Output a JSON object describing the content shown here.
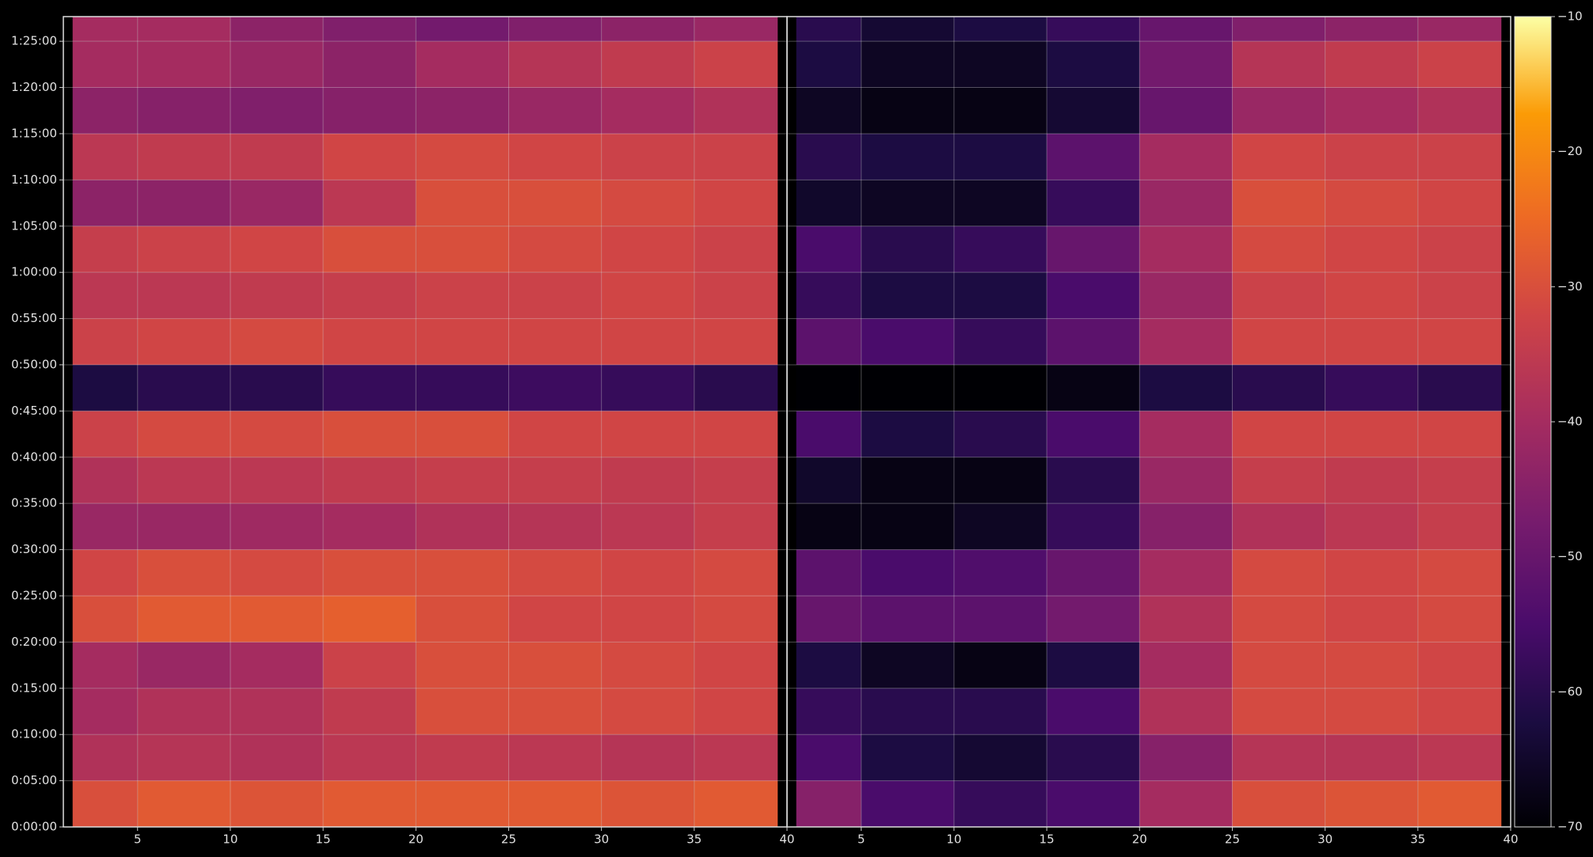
{
  "chart_data": [
    {
      "type": "heatmap",
      "colormap": "inferno",
      "grid": true,
      "xlim": [
        1,
        40
      ],
      "xticks": [
        5,
        10,
        15,
        20,
        25,
        30,
        35,
        40
      ],
      "ylim": [
        0,
        5260
      ],
      "yticks": [
        {
          "value": 0,
          "label": "0:00:00"
        },
        {
          "value": 300,
          "label": "0:05:00"
        },
        {
          "value": 600,
          "label": "0:10:00"
        },
        {
          "value": 900,
          "label": "0:15:00"
        },
        {
          "value": 1200,
          "label": "0:20:00"
        },
        {
          "value": 1500,
          "label": "0:25:00"
        },
        {
          "value": 1800,
          "label": "0:30:00"
        },
        {
          "value": 2100,
          "label": "0:35:00"
        },
        {
          "value": 2400,
          "label": "0:40:00"
        },
        {
          "value": 2700,
          "label": "0:45:00"
        },
        {
          "value": 3000,
          "label": "0:50:00"
        },
        {
          "value": 3300,
          "label": "0:55:00"
        },
        {
          "value": 3600,
          "label": "1:00:00"
        },
        {
          "value": 3900,
          "label": "1:05:00"
        },
        {
          "value": 4200,
          "label": "1:10:00"
        },
        {
          "value": 4500,
          "label": "1:15:00"
        },
        {
          "value": 4800,
          "label": "1:20:00"
        },
        {
          "value": 5100,
          "label": "1:25:00"
        }
      ],
      "xbins": [
        1.5,
        5,
        10,
        15,
        20,
        25,
        30,
        35,
        39.5
      ],
      "ybins": [
        0,
        300,
        600,
        900,
        1200,
        1500,
        1800,
        2100,
        2400,
        2700,
        3000,
        3300,
        3600,
        3900,
        4200,
        4500,
        4800,
        5100,
        5260
      ],
      "values": [
        [
          -30,
          -28,
          -29,
          -28,
          -28,
          -28,
          -29,
          -28
        ],
        [
          -38,
          -37,
          -38,
          -36,
          -35,
          -36,
          -37,
          -36
        ],
        [
          -40,
          -38,
          -38,
          -35,
          -30,
          -30,
          -31,
          -32
        ],
        [
          -40,
          -42,
          -40,
          -33,
          -30,
          -30,
          -31,
          -32
        ],
        [
          -30,
          -28,
          -28,
          -27,
          -30,
          -32,
          -32,
          -31
        ],
        [
          -32,
          -30,
          -31,
          -30,
          -30,
          -31,
          -32,
          -31
        ],
        [
          -42,
          -42,
          -41,
          -40,
          -38,
          -37,
          -36,
          -34
        ],
        [
          -38,
          -36,
          -36,
          -35,
          -34,
          -34,
          -35,
          -34
        ],
        [
          -33,
          -31,
          -31,
          -30,
          -30,
          -32,
          -32,
          -32
        ],
        [
          -62,
          -60,
          -60,
          -58,
          -58,
          -57,
          -58,
          -60
        ],
        [
          -33,
          -32,
          -31,
          -32,
          -32,
          -32,
          -32,
          -32
        ],
        [
          -36,
          -36,
          -35,
          -34,
          -33,
          -33,
          -32,
          -33
        ],
        [
          -34,
          -33,
          -32,
          -30,
          -30,
          -31,
          -32,
          -33
        ],
        [
          -44,
          -44,
          -42,
          -36,
          -30,
          -30,
          -31,
          -32
        ],
        [
          -36,
          -35,
          -35,
          -32,
          -31,
          -32,
          -33,
          -33
        ],
        [
          -44,
          -45,
          -46,
          -45,
          -44,
          -42,
          -40,
          -38
        ],
        [
          -40,
          -40,
          -42,
          -44,
          -40,
          -37,
          -35,
          -33
        ],
        [
          -40,
          -40,
          -44,
          -46,
          -48,
          -46,
          -44,
          -42
        ]
      ]
    },
    {
      "type": "heatmap",
      "colormap": "inferno",
      "grid": true,
      "xlim": [
        1,
        40
      ],
      "xticks": [
        5,
        10,
        15,
        20,
        25,
        30,
        35,
        40
      ],
      "ylim": [
        0,
        5260
      ],
      "xbins": [
        1.5,
        5,
        10,
        15,
        20,
        25,
        30,
        35,
        39.5
      ],
      "ybins": [
        0,
        300,
        600,
        900,
        1200,
        1500,
        1800,
        2100,
        2400,
        2700,
        3000,
        3300,
        3600,
        3900,
        4200,
        4500,
        4800,
        5100,
        5260
      ],
      "values": [
        [
          -45,
          -55,
          -58,
          -55,
          -40,
          -30,
          -29,
          -28
        ],
        [
          -55,
          -62,
          -64,
          -60,
          -45,
          -37,
          -37,
          -36
        ],
        [
          -58,
          -60,
          -60,
          -55,
          -38,
          -31,
          -31,
          -32
        ],
        [
          -62,
          -66,
          -68,
          -62,
          -40,
          -31,
          -31,
          -32
        ],
        [
          -50,
          -52,
          -52,
          -48,
          -38,
          -31,
          -32,
          -31
        ],
        [
          -52,
          -55,
          -54,
          -50,
          -40,
          -31,
          -32,
          -31
        ],
        [
          -68,
          -68,
          -66,
          -58,
          -45,
          -38,
          -36,
          -34
        ],
        [
          -65,
          -68,
          -68,
          -60,
          -42,
          -34,
          -35,
          -34
        ],
        [
          -55,
          -62,
          -60,
          -55,
          -40,
          -32,
          -32,
          -32
        ],
        [
          -70,
          -70,
          -70,
          -68,
          -62,
          -60,
          -58,
          -60
        ],
        [
          -52,
          -55,
          -58,
          -52,
          -40,
          -32,
          -32,
          -32
        ],
        [
          -58,
          -62,
          -62,
          -55,
          -42,
          -33,
          -32,
          -33
        ],
        [
          -55,
          -60,
          -58,
          -50,
          -40,
          -31,
          -32,
          -33
        ],
        [
          -65,
          -66,
          -66,
          -58,
          -42,
          -30,
          -31,
          -32
        ],
        [
          -60,
          -62,
          -62,
          -52,
          -40,
          -32,
          -33,
          -33
        ],
        [
          -66,
          -68,
          -68,
          -64,
          -50,
          -42,
          -40,
          -38
        ],
        [
          -62,
          -66,
          -66,
          -62,
          -48,
          -37,
          -35,
          -33
        ],
        [
          -60,
          -64,
          -62,
          -58,
          -50,
          -46,
          -44,
          -42
        ]
      ],
      "clim": [
        -70,
        -10
      ],
      "cticks": [
        {
          "value": -70,
          "label": "−70"
        },
        {
          "value": -60,
          "label": "−60"
        },
        {
          "value": -50,
          "label": "−50"
        },
        {
          "value": -40,
          "label": "−40"
        },
        {
          "value": -30,
          "label": "−30"
        },
        {
          "value": -20,
          "label": "−20"
        },
        {
          "value": -10,
          "label": "−10"
        }
      ]
    }
  ]
}
